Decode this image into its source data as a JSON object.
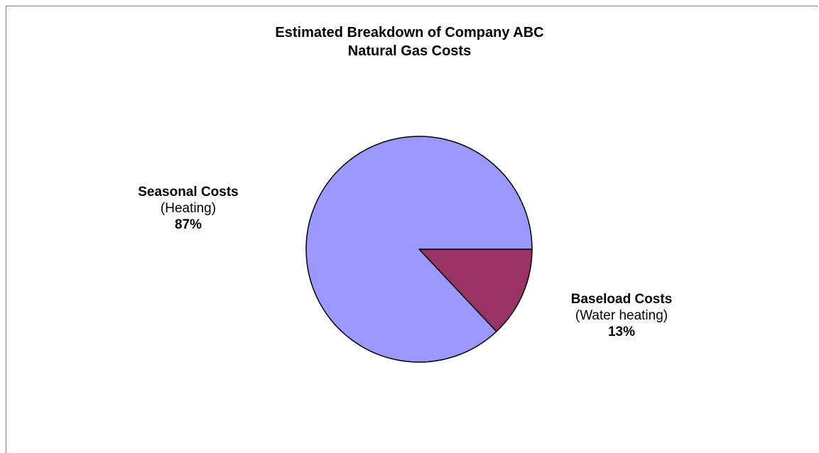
{
  "chart_data": {
    "type": "pie",
    "title_lines": [
      "Estimated Breakdown of Company ABC",
      "Natural Gas Costs"
    ],
    "slices": [
      {
        "name": "Seasonal Costs",
        "subtitle": "(Heating)",
        "value": 87,
        "value_label": "87%",
        "color": "#9999FF"
      },
      {
        "name": "Baseload Costs",
        "subtitle": "(Water heating)",
        "value": 13,
        "value_label": "13%",
        "color": "#993366"
      }
    ],
    "legend": "none"
  }
}
